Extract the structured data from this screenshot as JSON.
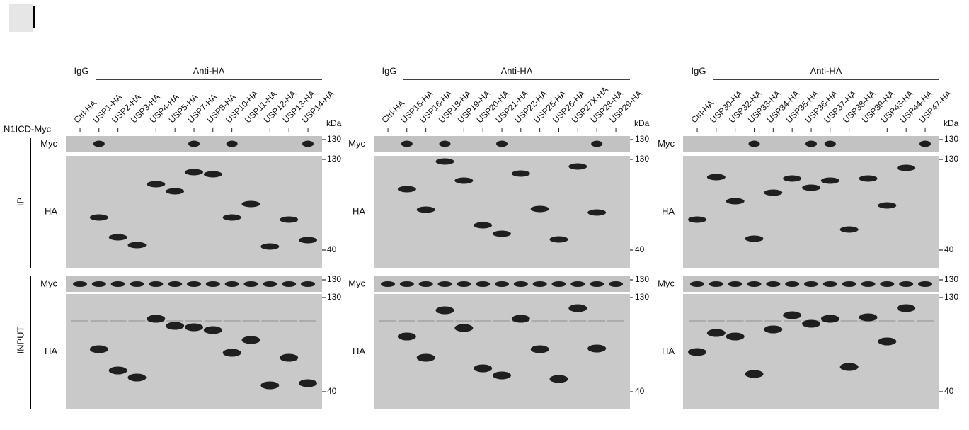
{
  "row_label": "N1ICD-Myc",
  "section_labels": [
    "IP",
    "INPUT"
  ],
  "panels": [
    {
      "igg": "IgG",
      "antibody": "Anti-HA",
      "kda": "kDa",
      "lanes": [
        {
          "name": "Ctrl-HA",
          "n1icd": "+"
        },
        {
          "name": "USP1-HA",
          "n1icd": "+"
        },
        {
          "name": "USP2-HA",
          "n1icd": "+"
        },
        {
          "name": "USP3-HA",
          "n1icd": "+"
        },
        {
          "name": "USP4-HA",
          "n1icd": "+"
        },
        {
          "name": "USP5-HA",
          "n1icd": "+"
        },
        {
          "name": "USP7-HA",
          "n1icd": "+"
        },
        {
          "name": "USP8-HA",
          "n1icd": "+"
        },
        {
          "name": "USP10-HA",
          "n1icd": "+"
        },
        {
          "name": "USP11-HA",
          "n1icd": "+"
        },
        {
          "name": "USP12-HA",
          "n1icd": "+"
        },
        {
          "name": "USP13-HA",
          "n1icd": "+"
        },
        {
          "name": "USP14-HA",
          "n1icd": "+"
        }
      ],
      "blots": [
        {
          "label": "Myc",
          "markers": [
            "130"
          ]
        },
        {
          "label": "HA",
          "markers": [
            "130",
            "40"
          ]
        },
        {
          "label": "Myc",
          "markers": [
            "130"
          ]
        },
        {
          "label": "HA",
          "markers": [
            "130",
            "40"
          ]
        }
      ]
    },
    {
      "igg": "IgG",
      "antibody": "Anti-HA",
      "kda": "kDa",
      "lanes": [
        {
          "name": "Ctrl-HA",
          "n1icd": "+"
        },
        {
          "name": "USP15-HA",
          "n1icd": "+"
        },
        {
          "name": "USP16-HA",
          "n1icd": "+"
        },
        {
          "name": "USP18-HA",
          "n1icd": "+"
        },
        {
          "name": "USP19-HA",
          "n1icd": "+"
        },
        {
          "name": "USP20-HA",
          "n1icd": "+"
        },
        {
          "name": "USP21-HA",
          "n1icd": "+"
        },
        {
          "name": "USP22-HA",
          "n1icd": "+"
        },
        {
          "name": "USP25-HA",
          "n1icd": "+"
        },
        {
          "name": "USP26-HA",
          "n1icd": "+"
        },
        {
          "name": "USP27X-HA",
          "n1icd": "+"
        },
        {
          "name": "USP28-HA",
          "n1icd": "+"
        },
        {
          "name": "USP29-HA",
          "n1icd": "+"
        }
      ],
      "blots": [
        {
          "label": "Myc",
          "markers": [
            "130"
          ]
        },
        {
          "label": "HA",
          "markers": [
            "130",
            "40"
          ]
        },
        {
          "label": "Myc",
          "markers": [
            "130"
          ]
        },
        {
          "label": "HA",
          "markers": [
            "130",
            "40"
          ]
        }
      ]
    },
    {
      "igg": "IgG",
      "antibody": "Anti-HA",
      "kda": "kDa",
      "lanes": [
        {
          "name": "Ctrl-HA",
          "n1icd": "+"
        },
        {
          "name": "USP30-HA",
          "n1icd": "+"
        },
        {
          "name": "USP32-HA",
          "n1icd": "+"
        },
        {
          "name": "USP33-HA",
          "n1icd": "+"
        },
        {
          "name": "USP34-HA",
          "n1icd": "+"
        },
        {
          "name": "USP35-HA",
          "n1icd": "+"
        },
        {
          "name": "USP36-HA",
          "n1icd": "+"
        },
        {
          "name": "USP37-HA",
          "n1icd": "+"
        },
        {
          "name": "USP38-HA",
          "n1icd": "+"
        },
        {
          "name": "USP39-HA",
          "n1icd": "+"
        },
        {
          "name": "USP43-HA",
          "n1icd": "+"
        },
        {
          "name": "USP44-HA",
          "n1icd": "+"
        },
        {
          "name": "USP47-HA",
          "n1icd": "+"
        }
      ],
      "blots": [
        {
          "label": "Myc",
          "markers": [
            "130"
          ]
        },
        {
          "label": "HA",
          "markers": [
            "130",
            "40"
          ]
        },
        {
          "label": "Myc",
          "markers": [
            "130"
          ]
        },
        {
          "label": "HA",
          "markers": [
            "130",
            "40"
          ]
        }
      ]
    }
  ]
}
